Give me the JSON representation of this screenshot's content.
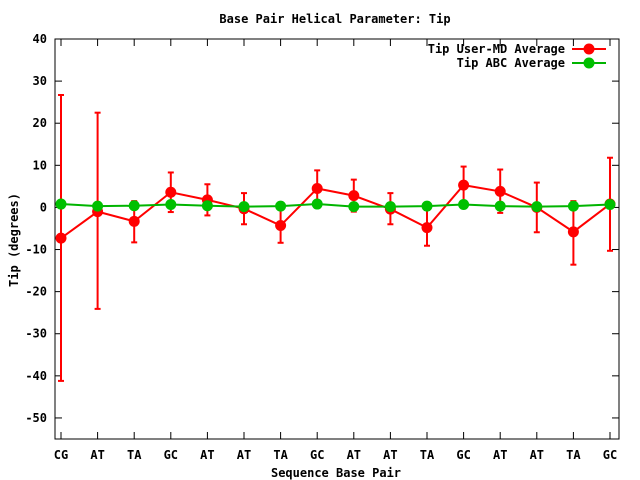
{
  "chart_data": {
    "type": "line",
    "title": "Base Pair Helical Parameter: Tip",
    "xlabel": "Sequence Base Pair",
    "ylabel": "Tip (degrees)",
    "categories": [
      "CG",
      "AT",
      "TA",
      "GC",
      "AT",
      "AT",
      "TA",
      "GC",
      "AT",
      "AT",
      "TA",
      "GC",
      "AT",
      "AT",
      "TA",
      "GC"
    ],
    "ylim": [
      -55,
      40
    ],
    "yticks": [
      40,
      30,
      20,
      10,
      0,
      -10,
      -20,
      -30,
      -40,
      -50
    ],
    "ytick_labels": [
      "40",
      "30",
      "20",
      "10",
      "0",
      "-10",
      "-20",
      "-30",
      "-40",
      "-50"
    ],
    "grid": false,
    "legend_position": "top-right",
    "series": [
      {
        "name": "Tip User-MD Average",
        "color": "#ff0000",
        "marker_color": "#ff0000",
        "values": [
          -7.3,
          -1.0,
          -3.3,
          3.6,
          1.8,
          -0.3,
          -4.3,
          4.5,
          2.8,
          -0.4,
          -4.8,
          5.3,
          3.8,
          0.0,
          -5.8,
          0.8
        ],
        "err_low": [
          -41.2,
          -24.1,
          -8.3,
          -1.1,
          -1.9,
          -4.0,
          -8.4,
          0.5,
          -1.0,
          -4.0,
          -9.1,
          0.8,
          -1.3,
          -5.9,
          -13.6,
          -10.3
        ],
        "err_high": [
          26.7,
          22.5,
          1.5,
          8.3,
          5.5,
          3.4,
          -0.4,
          8.8,
          6.6,
          3.4,
          -0.6,
          9.7,
          9.0,
          5.9,
          1.5,
          11.8
        ]
      },
      {
        "name": "Tip ABC Average",
        "color": "#00b400",
        "marker_color": "#00c000",
        "values": [
          0.8,
          0.3,
          0.4,
          0.7,
          0.4,
          0.2,
          0.3,
          0.8,
          0.2,
          0.2,
          0.3,
          0.7,
          0.3,
          0.2,
          0.3,
          0.7
        ]
      }
    ]
  }
}
